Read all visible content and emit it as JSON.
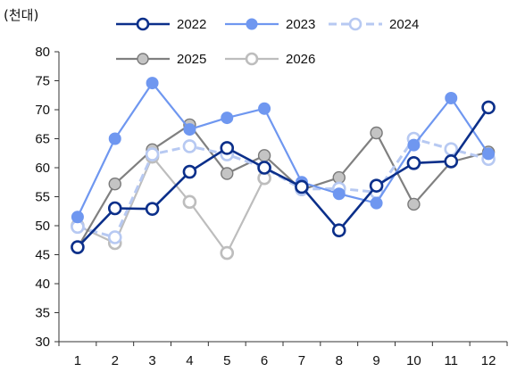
{
  "chart_data": {
    "type": "line",
    "unit_label": "(천대)",
    "categories": [
      "1",
      "2",
      "3",
      "4",
      "5",
      "6",
      "7",
      "8",
      "9",
      "10",
      "11",
      "12"
    ],
    "ylim": [
      30,
      80
    ],
    "yticks": [
      30,
      35,
      40,
      45,
      50,
      55,
      60,
      65,
      70,
      75,
      80
    ],
    "grid": false,
    "legend_position": "top",
    "series": [
      {
        "name": "2022",
        "color": "#0b2f8a",
        "dashed": false,
        "marker": "hollow",
        "values": [
          46.3,
          53.0,
          52.9,
          59.3,
          63.4,
          60.0,
          56.7,
          49.2,
          56.9,
          60.8,
          61.1,
          70.4
        ]
      },
      {
        "name": "2023",
        "color": "#6f97f0",
        "dashed": false,
        "marker": "filled",
        "values": [
          51.5,
          65.0,
          74.6,
          66.6,
          68.6,
          70.2,
          57.5,
          55.5,
          53.9,
          63.9,
          72.0,
          62.4
        ]
      },
      {
        "name": "2024",
        "color": "#b7c9f2",
        "dashed": true,
        "marker": "hollow",
        "values": [
          49.8,
          48.0,
          62.3,
          63.7,
          62.3,
          60.0,
          56.3,
          56.4,
          55.8,
          65.0,
          63.2,
          61.5
        ]
      },
      {
        "name": "2025",
        "color": "#808080",
        "dashed": false,
        "marker": "filled-gray",
        "values": [
          46.2,
          57.2,
          63.1,
          67.4,
          59.0,
          62.1,
          56.2,
          58.3,
          66.0,
          53.7,
          61.0,
          62.7
        ]
      },
      {
        "name": "2026",
        "color": "#bdbdbd",
        "dashed": false,
        "marker": "hollow",
        "values": [
          50.0,
          47.0,
          61.9,
          54.1,
          45.3,
          58.2,
          null,
          null,
          null,
          null,
          null,
          null
        ]
      }
    ]
  }
}
